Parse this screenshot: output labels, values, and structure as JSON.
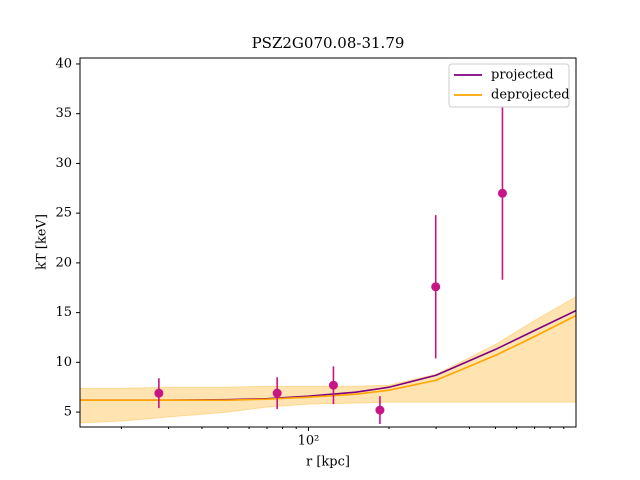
{
  "chart_data": {
    "type": "line",
    "title": "PSZ2G070.08-31.79",
    "xlabel": "r [kpc]",
    "ylabel": "kT [keV]",
    "xscale": "log",
    "xlim": [
      14,
      1000
    ],
    "ylim": [
      3.5,
      40.6
    ],
    "xticks": [
      {
        "value": 100,
        "label": "10²"
      }
    ],
    "xminorticks": [
      20,
      30,
      40,
      50,
      60,
      70,
      80,
      90,
      200,
      300,
      400,
      500,
      600,
      700,
      800,
      900
    ],
    "yticks": [
      5,
      10,
      15,
      20,
      25,
      30,
      35,
      40
    ],
    "legend": "upper right",
    "x": [
      14,
      20,
      30,
      50,
      70,
      100,
      150,
      200,
      300,
      500,
      700,
      1000
    ],
    "series": [
      {
        "name": "projected",
        "color": "#800080",
        "values": [
          6.2,
          6.2,
          6.2,
          6.25,
          6.35,
          6.6,
          7.0,
          7.5,
          8.7,
          11.3,
          13.2,
          15.2
        ]
      },
      {
        "name": "deprojected",
        "color": "#ffa500",
        "values": [
          6.2,
          6.2,
          6.2,
          6.2,
          6.3,
          6.5,
          6.8,
          7.2,
          8.2,
          10.7,
          12.6,
          14.7
        ]
      }
    ],
    "band": {
      "color": "#ffa500",
      "lower": [
        3.9,
        4.1,
        4.5,
        5.0,
        5.5,
        5.8,
        5.9,
        6.0,
        6.0,
        6.0,
        6.0,
        6.0
      ],
      "upper": [
        7.4,
        7.4,
        7.5,
        7.5,
        7.6,
        7.6,
        7.6,
        7.7,
        8.8,
        11.8,
        14.2,
        16.6
      ]
    },
    "points": {
      "color": "#c71585",
      "x": [
        27.6,
        76.4,
        124,
        185,
        299,
        531
      ],
      "y": [
        6.9,
        6.9,
        7.7,
        5.2,
        17.6,
        27.0
      ],
      "yerr": [
        1.5,
        1.6,
        1.9,
        1.4,
        7.2,
        8.7
      ]
    }
  }
}
